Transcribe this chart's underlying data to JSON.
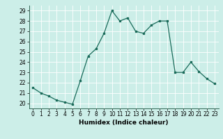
{
  "x": [
    0,
    1,
    2,
    3,
    4,
    5,
    6,
    7,
    8,
    9,
    10,
    11,
    12,
    13,
    14,
    15,
    16,
    17,
    18,
    19,
    20,
    21,
    22,
    23
  ],
  "y": [
    21.5,
    21.0,
    20.7,
    20.3,
    20.1,
    19.9,
    22.2,
    24.6,
    25.3,
    26.8,
    29.0,
    28.0,
    28.3,
    27.0,
    26.8,
    27.6,
    28.0,
    28.0,
    23.0,
    23.0,
    24.0,
    23.1,
    22.4,
    21.9
  ],
  "xlabel": "Humidex (Indice chaleur)",
  "ylim": [
    19.5,
    29.5
  ],
  "xlim": [
    -0.5,
    23.5
  ],
  "yticks": [
    20,
    21,
    22,
    23,
    24,
    25,
    26,
    27,
    28,
    29
  ],
  "xticks": [
    0,
    1,
    2,
    3,
    4,
    5,
    6,
    7,
    8,
    9,
    10,
    11,
    12,
    13,
    14,
    15,
    16,
    17,
    18,
    19,
    20,
    21,
    22,
    23
  ],
  "line_color": "#1a6b5a",
  "marker": "s",
  "marker_size": 2.0,
  "bg_color": "#cceee8",
  "grid_color": "#ffffff",
  "label_fontsize": 6.5,
  "tick_fontsize": 5.5
}
